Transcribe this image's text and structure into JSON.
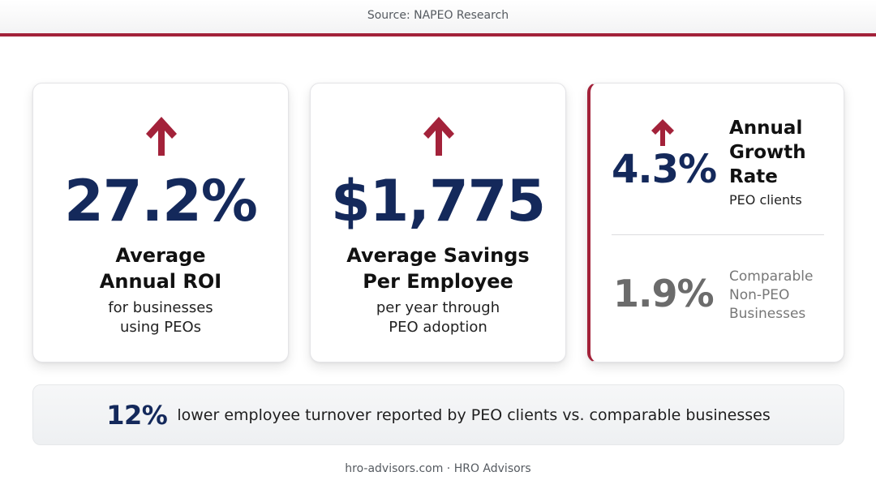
{
  "header": {
    "source": "Source: NAPEO Research"
  },
  "colors": {
    "accent": "#a3223a",
    "value_navy": "#14295b",
    "muted_gray": "#6b6b6b"
  },
  "cards": [
    {
      "icon": "arrow-up-icon",
      "value": "27.2%",
      "title_line1": "Average",
      "title_line2": "Annual ROI",
      "sub_line1": "for businesses",
      "sub_line2": "using PEOs"
    },
    {
      "icon": "arrow-up-icon",
      "value": "$1,775",
      "title_line1": "Average Savings",
      "title_line2": "Per Employee",
      "sub_line1": "per year through",
      "sub_line2": "PEO adoption"
    }
  ],
  "growth": {
    "icon": "arrow-up-icon",
    "peo_value": "4.3%",
    "title_line1": "Annual",
    "title_line2": "Growth",
    "title_line3": "Rate",
    "peo_label": "PEO clients",
    "non_peo_value": "1.9%",
    "compare_line1": "Comparable",
    "compare_line2": "Non-PEO",
    "compare_line3": "Businesses"
  },
  "banner": {
    "value": "12%",
    "text": "lower employee turnover reported by PEO clients vs. comparable businesses"
  },
  "footer": {
    "text": "hro-advisors.com · HRO Advisors"
  }
}
